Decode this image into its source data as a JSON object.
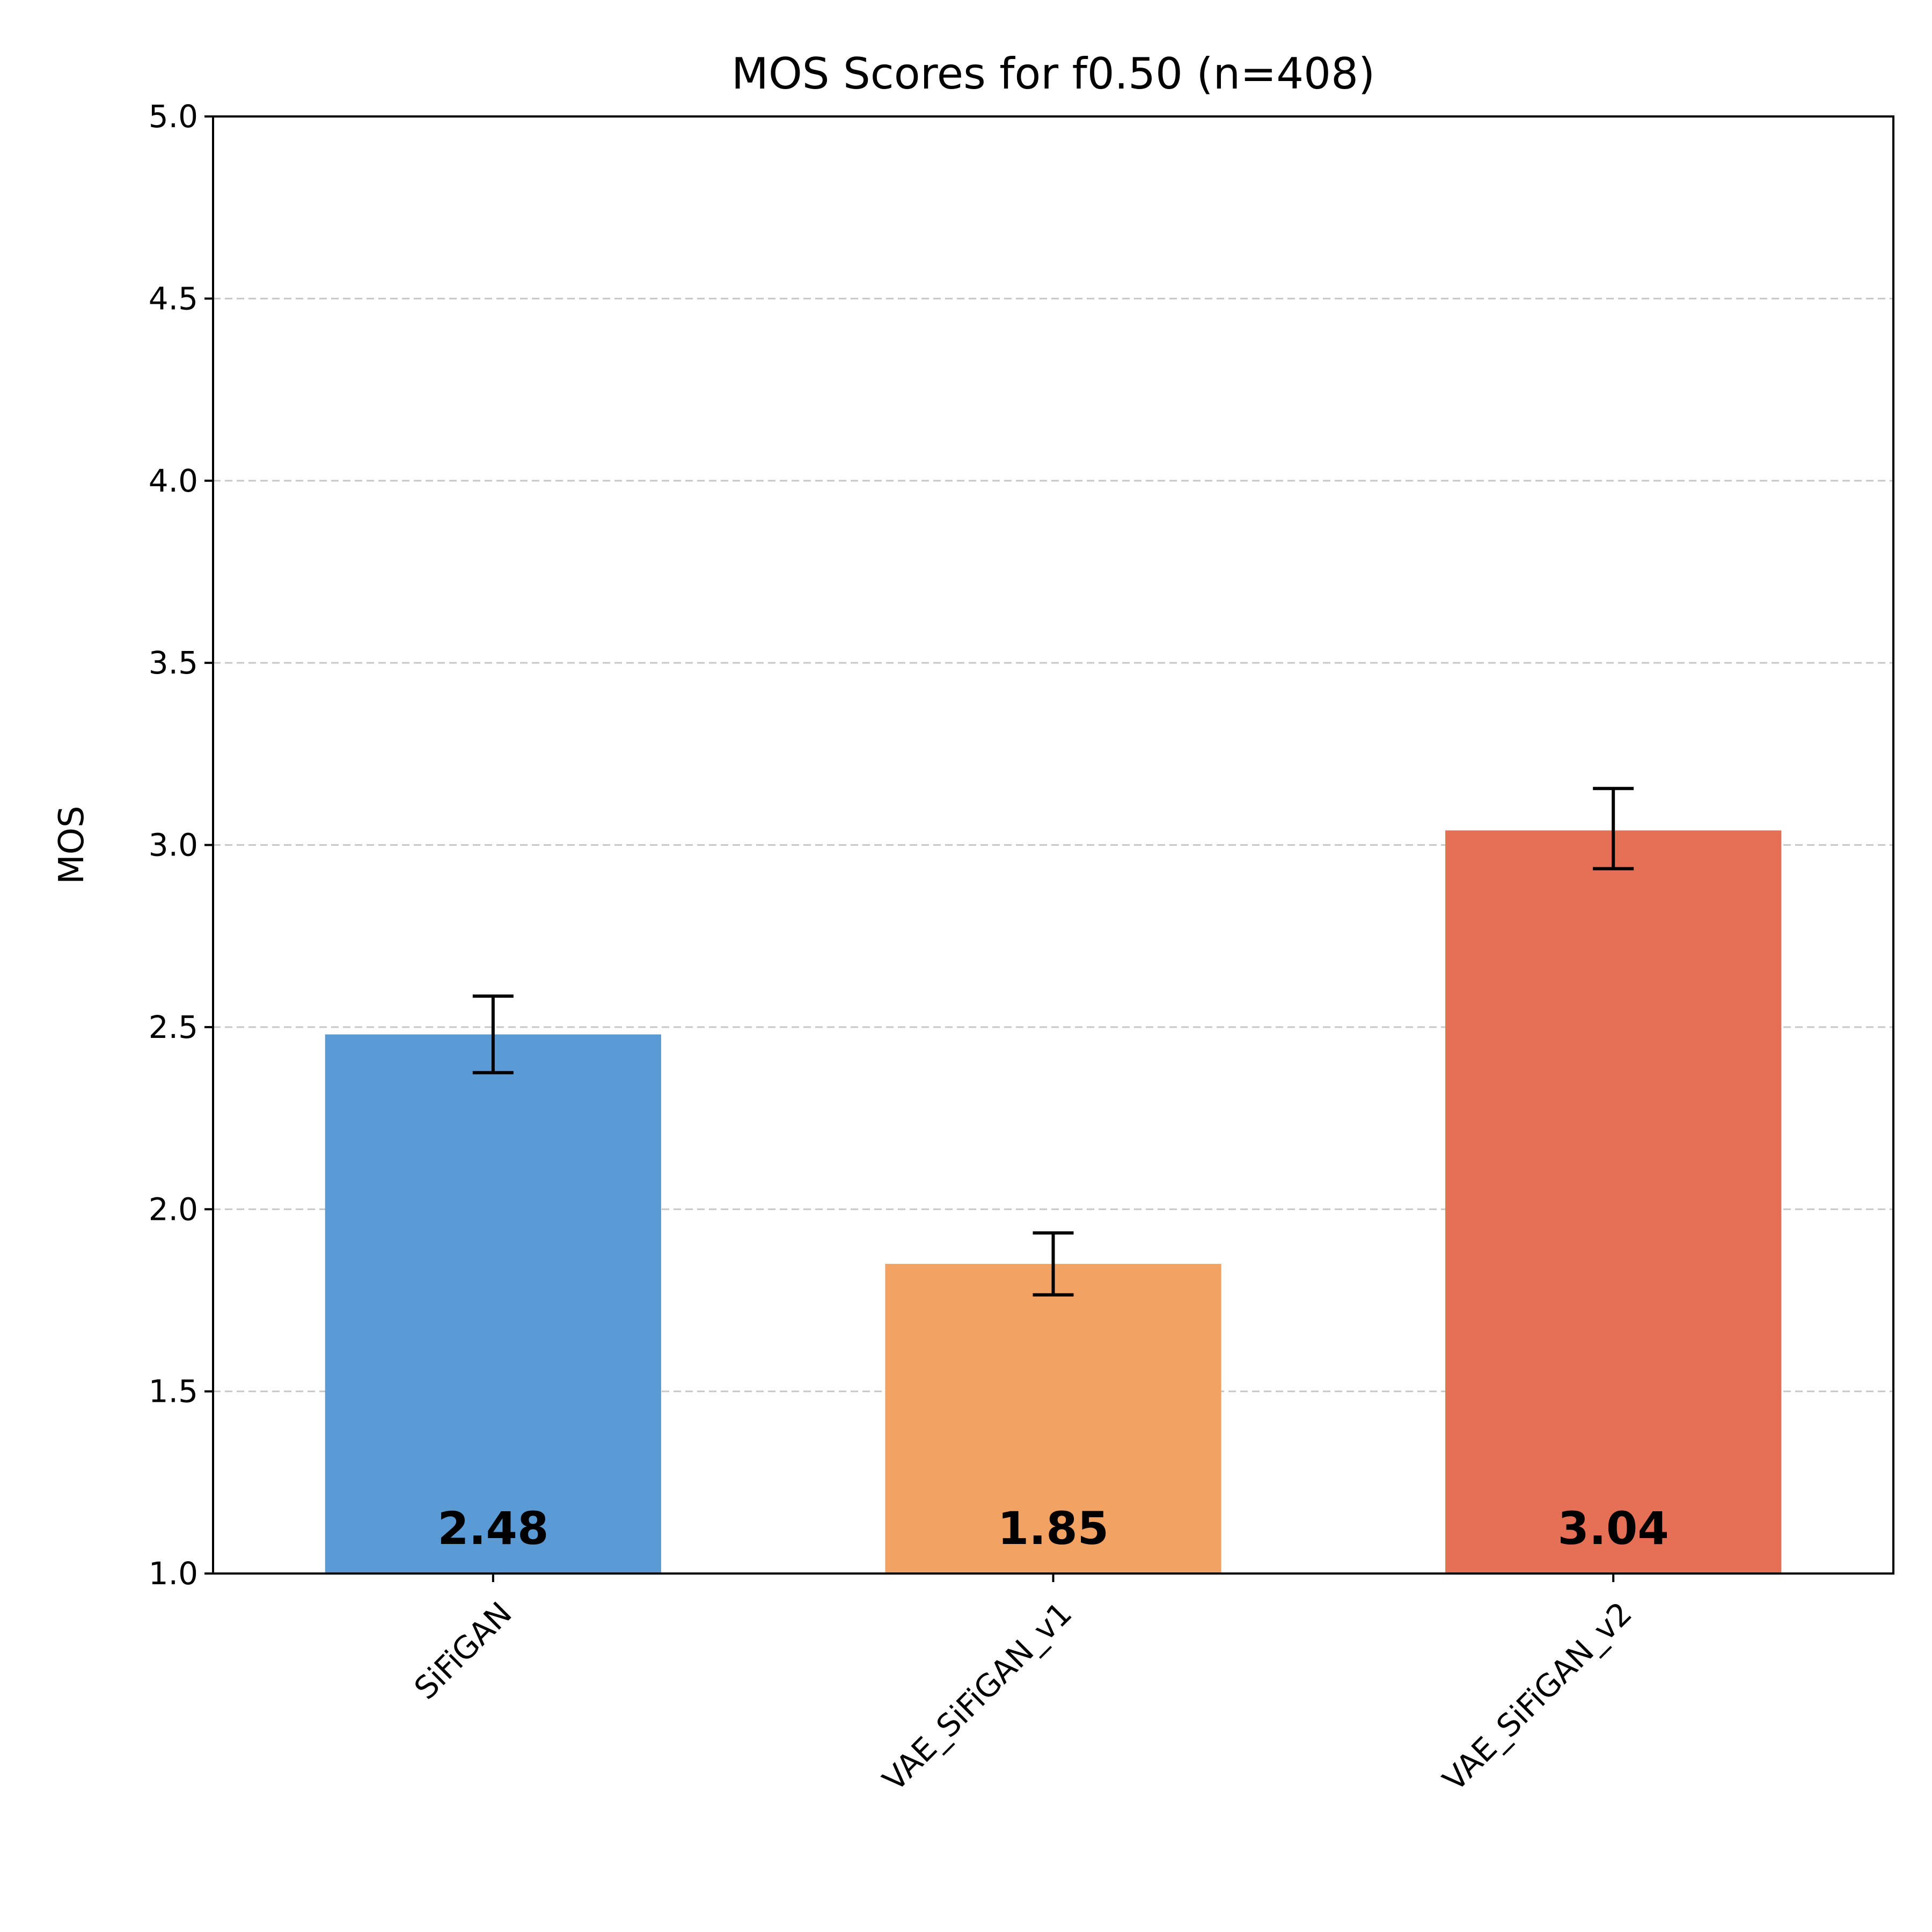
{
  "chart_data": {
    "type": "bar",
    "title": "MOS Scores for f0.50 (n=408)",
    "xlabel": "",
    "ylabel": "MOS",
    "ylim": [
      1.0,
      5.0
    ],
    "yticks": [
      1.0,
      1.5,
      2.0,
      2.5,
      3.0,
      3.5,
      4.0,
      4.5,
      5.0
    ],
    "ytick_labels": [
      "1.0",
      "1.5",
      "2.0",
      "2.5",
      "3.0",
      "3.5",
      "4.0",
      "4.5",
      "5.0"
    ],
    "grid": "y-dashed",
    "categories": [
      "SiFiGAN",
      "VAE_SiFiGAN_v1",
      "VAE_SiFiGAN_v2"
    ],
    "values": [
      2.48,
      1.85,
      3.04
    ],
    "value_labels": [
      "2.48",
      "1.85",
      "3.04"
    ],
    "error_low": [
      2.375,
      1.765,
      2.935
    ],
    "error_high": [
      2.585,
      1.935,
      3.155
    ],
    "colors": [
      "#5b9bd5",
      "#f2a263",
      "#e57055"
    ]
  }
}
